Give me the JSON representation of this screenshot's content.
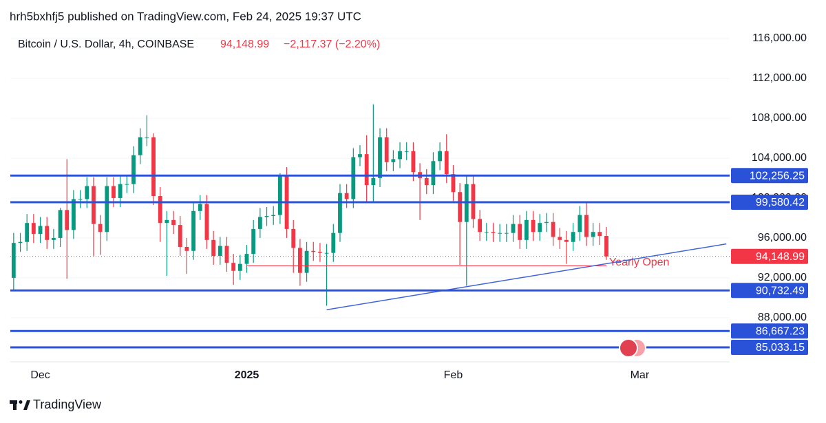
{
  "header": {
    "published": "hrh5bxhfj5 published on TradingView.com, Feb 24, 2025 19:37 UTC",
    "symbol": "Bitcoin / U.S. Dollar, 4h, COINBASE",
    "last": "94,148.99",
    "change": "−2,117.37 (−2.20%)"
  },
  "chart_data": {
    "type": "candlestick",
    "categories": [
      null,
      null,
      null,
      null,
      "Dec",
      null,
      null,
      null,
      null,
      null,
      null,
      null,
      null,
      null,
      null,
      null,
      null,
      null,
      null,
      null,
      null,
      null,
      null,
      null,
      null,
      null,
      null,
      null,
      null,
      null,
      null,
      null,
      null,
      null,
      null,
      "2025",
      null,
      null,
      null,
      null,
      null,
      null,
      null,
      null,
      null,
      null,
      null,
      null,
      null,
      null,
      null,
      null,
      null,
      null,
      null,
      null,
      null,
      null,
      null,
      null,
      null,
      null,
      null,
      null,
      null,
      null,
      "Feb",
      null,
      null,
      null,
      null,
      null,
      null,
      null,
      null,
      null,
      null,
      null,
      null,
      null,
      null,
      null,
      null,
      null,
      null,
      null,
      null,
      null,
      null,
      null,
      null,
      null,
      null,
      null,
      "Mar",
      null,
      null,
      null,
      null,
      null,
      null,
      null,
      null,
      null,
      null,
      null,
      null,
      null
    ],
    "open": [
      92000,
      95500,
      95600,
      97500,
      96400,
      97200,
      95800,
      96000,
      98800,
      96800,
      99900,
      99900,
      101200,
      97400,
      96600,
      101200,
      100000,
      101400,
      101400,
      104300,
      106100,
      106100,
      100200,
      97500,
      97800,
      97300,
      95100,
      94700,
      98700,
      99400,
      95800,
      94200,
      95200,
      93500,
      92700,
      93400,
      94400,
      96900,
      98100,
      98200,
      98300,
      102200,
      96900,
      95000,
      92500,
      94700,
      94600,
      94500,
      94500,
      96500,
      100500,
      99900,
      104100,
      104400,
      101300,
      102000,
      106100,
      103600,
      103900,
      104700,
      104700,
      102600,
      102000,
      101300,
      103700,
      104700,
      102400,
      100600,
      97600,
      101400,
      97900,
      96600,
      96600,
      96500,
      96500,
      96500,
      97400,
      95800,
      97800,
      96600,
      97500,
      97600,
      96100,
      95800,
      95600,
      96600,
      98300,
      96100,
      96600,
      96200,
      null,
      null,
      null,
      null,
      null,
      null,
      null,
      null,
      null,
      null,
      null,
      null,
      null,
      null,
      null,
      null,
      null,
      null
    ],
    "high": [
      96500,
      96500,
      98400,
      98400,
      98100,
      98100,
      96900,
      99000,
      103900,
      100800,
      100800,
      102100,
      102100,
      98300,
      102100,
      102100,
      102300,
      102300,
      105200,
      107000,
      108300,
      106500,
      101100,
      98700,
      98700,
      98200,
      96000,
      99600,
      100300,
      100300,
      96700,
      96100,
      96100,
      94400,
      94300,
      95300,
      97800,
      99000,
      99100,
      99200,
      102500,
      103100,
      97800,
      95900,
      95600,
      95600,
      95500,
      95400,
      97400,
      101400,
      101400,
      105000,
      105300,
      106300,
      109400,
      107000,
      107000,
      104800,
      105600,
      105600,
      105600,
      103500,
      102900,
      104600,
      105600,
      106400,
      103300,
      101500,
      102300,
      102300,
      98800,
      97500,
      97500,
      97400,
      97400,
      98300,
      98300,
      98700,
      98700,
      98400,
      98500,
      98500,
      97000,
      96700,
      97500,
      99200,
      99500,
      97500,
      97500,
      97100,
      null,
      null,
      null,
      null,
      null,
      null,
      null,
      null,
      null,
      null,
      null,
      null,
      null,
      null,
      null,
      null,
      null,
      null
    ],
    "low": [
      90800,
      94600,
      94700,
      95500,
      95500,
      94900,
      94900,
      95100,
      91900,
      95900,
      99000,
      99000,
      94200,
      94300,
      95700,
      99100,
      99100,
      100500,
      100500,
      103400,
      105200,
      99300,
      95600,
      92200,
      96400,
      94200,
      92400,
      93800,
      97800,
      94900,
      93300,
      93300,
      92600,
      91300,
      91800,
      92500,
      93500,
      96000,
      97200,
      97300,
      97400,
      96000,
      92500,
      91200,
      91600,
      93700,
      93600,
      89200,
      93600,
      95600,
      99000,
      99000,
      103200,
      99500,
      99500,
      101100,
      102700,
      102700,
      103000,
      103800,
      101700,
      97800,
      100400,
      100400,
      102800,
      101500,
      99700,
      93300,
      91200,
      97000,
      95700,
      95700,
      95600,
      95600,
      95600,
      95600,
      94900,
      94900,
      95700,
      95700,
      96600,
      95200,
      94900,
      93400,
      94700,
      95700,
      95200,
      95200,
      95300,
      93800,
      null,
      null,
      null,
      null,
      null,
      null,
      null,
      null,
      null,
      null,
      null,
      null,
      null,
      null,
      null,
      null,
      null,
      null
    ],
    "close": [
      95500,
      95600,
      97500,
      96400,
      97200,
      95800,
      96000,
      98800,
      96800,
      99900,
      99900,
      101200,
      97400,
      96600,
      101200,
      100000,
      101400,
      101400,
      104300,
      106100,
      106100,
      100200,
      97500,
      97800,
      97300,
      95100,
      94700,
      98700,
      99400,
      95800,
      94200,
      95200,
      93500,
      92700,
      93400,
      94400,
      96900,
      98100,
      98200,
      98300,
      102200,
      96900,
      95000,
      92500,
      94700,
      94600,
      94500,
      94500,
      96500,
      100500,
      99900,
      104100,
      104400,
      101300,
      102000,
      106100,
      103600,
      103900,
      104700,
      104700,
      102600,
      102000,
      101300,
      103700,
      104700,
      102400,
      100600,
      97600,
      101400,
      97900,
      96600,
      96600,
      96500,
      96500,
      96500,
      97400,
      95800,
      97800,
      96600,
      97500,
      97600,
      96100,
      95800,
      95600,
      96600,
      98300,
      96100,
      96600,
      96200,
      94148.99,
      null,
      null,
      null,
      null,
      null,
      null,
      null,
      null,
      null,
      null,
      null,
      null,
      null,
      null,
      null,
      null,
      null,
      null
    ],
    "up_color": "#089981",
    "down_color": "#f23645",
    "ylim": [
      83650,
      117100
    ],
    "yticks": [
      {
        "value": 88000,
        "label": "88,000.00"
      },
      {
        "value": 92000,
        "label": "92,000.00"
      },
      {
        "value": 96000,
        "label": "96,000.00"
      },
      {
        "value": 100000,
        "label": "100,000.00"
      },
      {
        "value": 104000,
        "label": "104,000.00"
      },
      {
        "value": 108000,
        "label": "108,000.00"
      },
      {
        "value": 112000,
        "label": "112,000.00"
      },
      {
        "value": 116000,
        "label": "116,000.00"
      }
    ],
    "levels": [
      {
        "value": 102256.25,
        "label": "102,256.25"
      },
      {
        "value": 99580.42,
        "label": "99,580.42"
      },
      {
        "value": 90732.49,
        "label": "90,732.49"
      },
      {
        "value": 86667.23,
        "label": "86,667.23"
      },
      {
        "value": 85033.15,
        "label": "85,033.15"
      }
    ],
    "level_color": "#2a52d8",
    "price": {
      "value": 94148.99,
      "label": "94,148.99"
    },
    "price_color": "#f23645",
    "yearly_open": {
      "value": 93200,
      "label": "Yearly Open",
      "from": 35,
      "to": 89
    },
    "trendline": {
      "start": {
        "index": 47,
        "value": 88800
      },
      "end": {
        "index": 107,
        "value": 95400
      },
      "color": "#3f63d8"
    }
  },
  "footer": {
    "brand": "TradingView"
  }
}
